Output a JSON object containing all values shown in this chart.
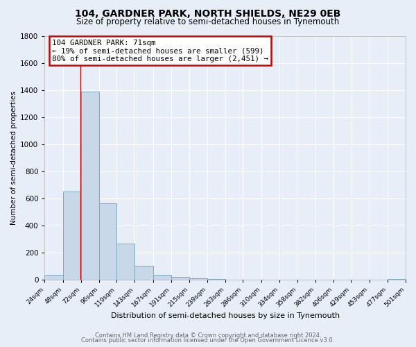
{
  "title": "104, GARDNER PARK, NORTH SHIELDS, NE29 0EB",
  "subtitle": "Size of property relative to semi-detached houses in Tynemouth",
  "xlabel": "Distribution of semi-detached houses by size in Tynemouth",
  "ylabel": "Number of semi-detached properties",
  "bar_color": "#c8d8e8",
  "bar_edge_color": "#7aaabf",
  "annotation_box_edge": "#cc0000",
  "property_line_color": "#cc0000",
  "footer1": "Contains HM Land Registry data © Crown copyright and database right 2024.",
  "footer2": "Contains public sector information licensed under the Open Government Licence v3.0.",
  "annotation_title": "104 GARDNER PARK: 71sqm",
  "annotation_line1": "← 19% of semi-detached houses are smaller (599)",
  "annotation_line2": "80% of semi-detached houses are larger (2,451) →",
  "property_value": 71,
  "ylim": [
    0,
    1800
  ],
  "yticks": [
    0,
    200,
    400,
    600,
    800,
    1000,
    1200,
    1400,
    1600,
    1800
  ],
  "bin_edges": [
    24,
    48,
    72,
    96,
    119,
    143,
    167,
    191,
    215,
    239,
    263,
    286,
    310,
    334,
    358,
    382,
    406,
    429,
    453,
    477,
    501
  ],
  "bin_counts": [
    35,
    650,
    1390,
    565,
    270,
    105,
    35,
    20,
    10,
    5,
    2,
    1,
    0,
    0,
    0,
    0,
    0,
    0,
    0,
    5
  ],
  "background_color": "#e8eef8",
  "title_fontsize": 10,
  "subtitle_fontsize": 8.5
}
